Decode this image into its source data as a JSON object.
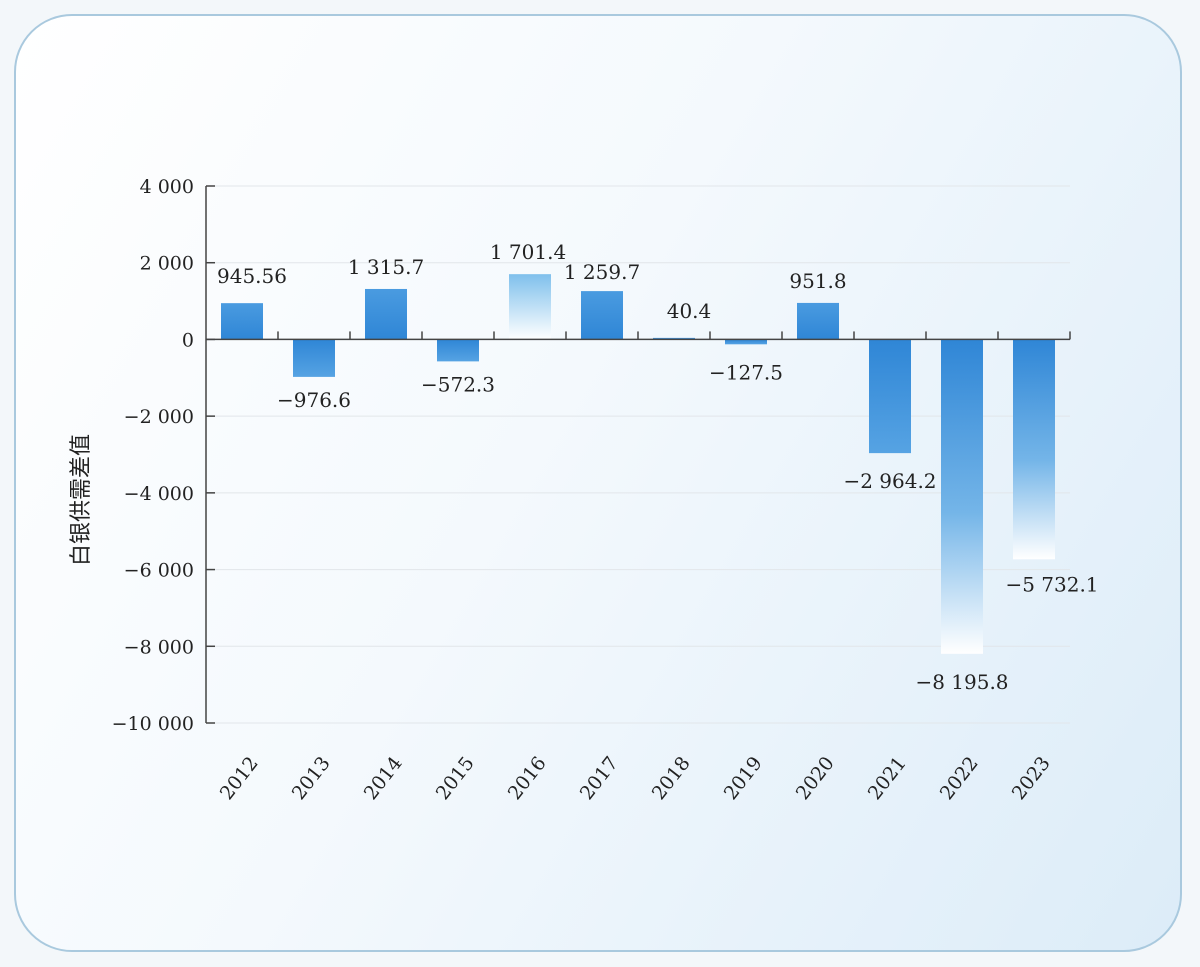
{
  "chart_data": {
    "type": "bar",
    "title": "",
    "xlabel": "",
    "ylabel": "白银供需差值",
    "categories": [
      "2012",
      "2013",
      "2014",
      "2015",
      "2016",
      "2017",
      "2018",
      "2019",
      "2020",
      "2021",
      "2022",
      "2023"
    ],
    "values": [
      945.56,
      -976.6,
      1315.7,
      -572.3,
      1701.4,
      1259.7,
      40.4,
      -127.5,
      951.8,
      -2964.2,
      -8195.8,
      -5732.1
    ],
    "data_labels": [
      "945.56",
      "−976.6",
      "1 315.7",
      "−572.3",
      "1 701.4",
      "1 259.7",
      "40.4",
      "−127.5",
      "951.8",
      "−2 964.2",
      "−8 195.8",
      "−5 732.1"
    ],
    "ylim": [
      -10000,
      4000
    ],
    "yticks": [
      4000,
      2000,
      0,
      -2000,
      -4000,
      -6000,
      -8000,
      -10000
    ],
    "ytick_labels": [
      "4 000",
      "2 000",
      "0",
      "−2 000",
      "−4 000",
      "−6 000",
      "−8 000",
      "−10 000"
    ],
    "grid": true,
    "legend": "none",
    "colors": {
      "bar_dark": "#2f86d6",
      "bar_light": "#e8f3fb",
      "axis": "#444444",
      "grid": "#e2e6ea"
    }
  }
}
